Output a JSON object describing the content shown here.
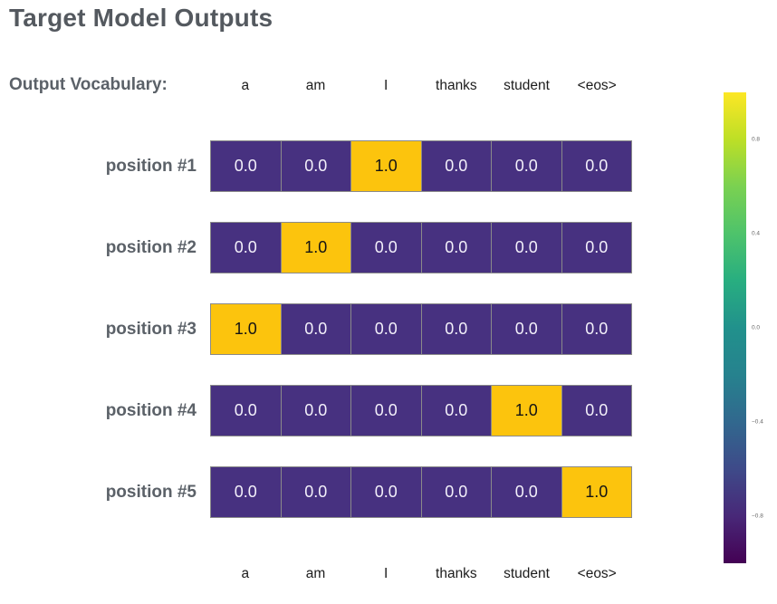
{
  "title": "Target Model Outputs",
  "vocab_label": "Output Vocabulary:",
  "colors": {
    "title_text": "#54595f",
    "label_text": "#5b6168",
    "token_text": "#1c1c1c",
    "cell_low": "#473180",
    "cell_high": "#fcc40d",
    "cell_low_text": "#f3f0fa",
    "cell_high_text": "#141414",
    "cell_border": "#8a8a8a",
    "tick_text": "#666666"
  },
  "chart_data": {
    "type": "heatmap",
    "title": "Target Model Outputs",
    "columns": [
      "a",
      "am",
      "I",
      "thanks",
      "student",
      "<eos>"
    ],
    "rows": [
      "position #1",
      "position #2",
      "position #3",
      "position #4",
      "position #5"
    ],
    "values": [
      [
        0.0,
        0.0,
        1.0,
        0.0,
        0.0,
        0.0
      ],
      [
        0.0,
        1.0,
        0.0,
        0.0,
        0.0,
        0.0
      ],
      [
        1.0,
        0.0,
        0.0,
        0.0,
        0.0,
        0.0
      ],
      [
        0.0,
        0.0,
        0.0,
        0.0,
        1.0,
        0.0
      ],
      [
        0.0,
        0.0,
        0.0,
        0.0,
        0.0,
        1.0
      ]
    ],
    "value_decimals": 1,
    "colormap": "viridis",
    "color_range": [
      -1,
      1
    ],
    "grid": false,
    "colorbar": {
      "position": "right",
      "ticks": [
        {
          "label": "0.8",
          "value": 0.8
        },
        {
          "label": "0.4",
          "value": 0.4
        },
        {
          "label": "0.0",
          "value": 0.0
        },
        {
          "label": "−0.4",
          "value": -0.4
        },
        {
          "label": "−0.8",
          "value": -0.8
        }
      ]
    }
  }
}
